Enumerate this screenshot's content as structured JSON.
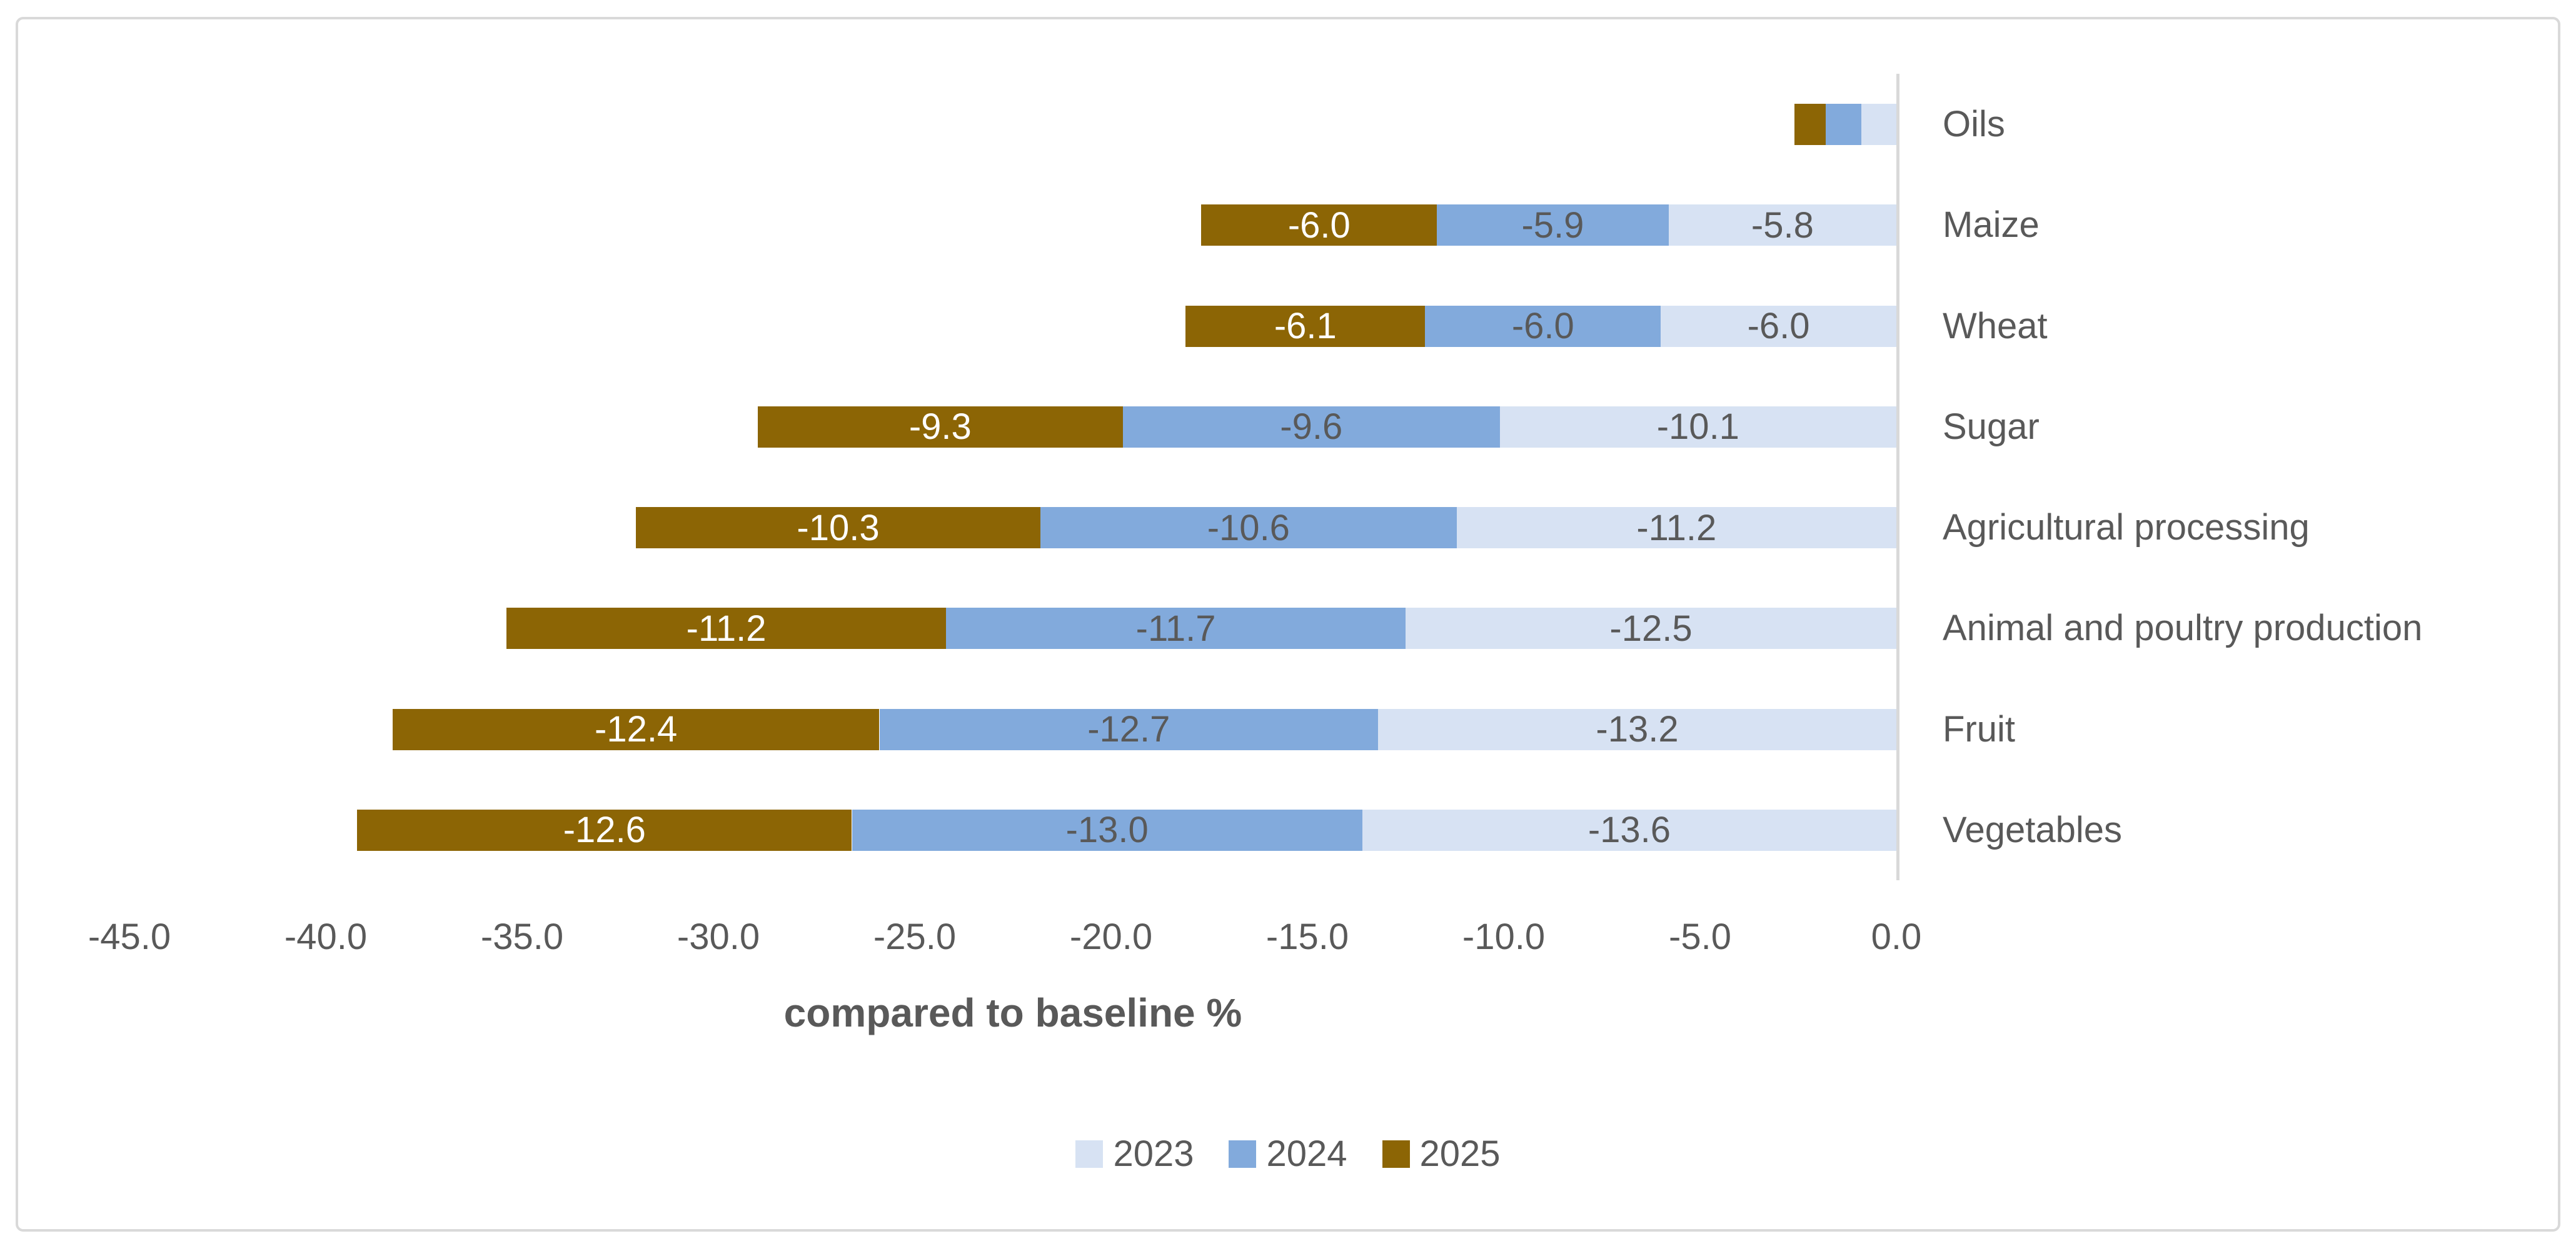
{
  "frame": {
    "background": "#ffffff",
    "border_color": "#d9d9d9"
  },
  "chart_data": {
    "type": "bar",
    "variant": "horizontal-stacked",
    "title": "",
    "xlabel": "compared to baseline %",
    "ylabel": "",
    "xlim": [
      -45,
      0
    ],
    "grid": false,
    "legend_position": "bottom-center",
    "axis_line_color": "#d9d9d9",
    "text_color": "#595959",
    "categories": [
      "Oils",
      "Maize",
      "Wheat",
      "Sugar",
      "Agricultural processing",
      "Animal and poultry production",
      "Fruit",
      "Vegetables"
    ],
    "series": [
      {
        "name": "2023",
        "color": "#d7e2f3",
        "label_color": "#595959",
        "values": [
          -0.9,
          -5.8,
          -6.0,
          -10.1,
          -11.2,
          -12.5,
          -13.2,
          -13.6
        ],
        "labels": [
          "",
          "-5.8",
          "-6.0",
          "-10.1",
          "-11.2",
          "-12.5",
          "-13.2",
          "-13.6"
        ]
      },
      {
        "name": "2024",
        "color": "#82aadc",
        "label_color": "#595959",
        "values": [
          -0.9,
          -5.9,
          -6.0,
          -9.6,
          -10.6,
          -11.7,
          -12.7,
          -13.0
        ],
        "labels": [
          "",
          "-5.9",
          "-6.0",
          "-9.6",
          "-10.6",
          "-11.7",
          "-12.7",
          "-13.0"
        ]
      },
      {
        "name": "2025",
        "color": "#8c6505",
        "label_color": "#ffffff",
        "values": [
          -0.8,
          -6.0,
          -6.1,
          -9.3,
          -10.3,
          -11.2,
          -12.4,
          -12.6
        ],
        "labels": [
          "",
          "-6.0",
          "-6.1",
          "-9.3",
          "-10.3",
          "-11.2",
          "-12.4",
          "-12.6"
        ]
      }
    ],
    "x_ticks": [
      {
        "value": -45,
        "label": "-45.0"
      },
      {
        "value": -40,
        "label": "-40.0"
      },
      {
        "value": -35,
        "label": "-35.0"
      },
      {
        "value": -30,
        "label": "-30.0"
      },
      {
        "value": -25,
        "label": "-25.0"
      },
      {
        "value": -20,
        "label": "-20.0"
      },
      {
        "value": -15,
        "label": "-15.0"
      },
      {
        "value": -10,
        "label": "-10.0"
      },
      {
        "value": -5,
        "label": "-5.0"
      },
      {
        "value": 0,
        "label": "0.0"
      }
    ]
  }
}
